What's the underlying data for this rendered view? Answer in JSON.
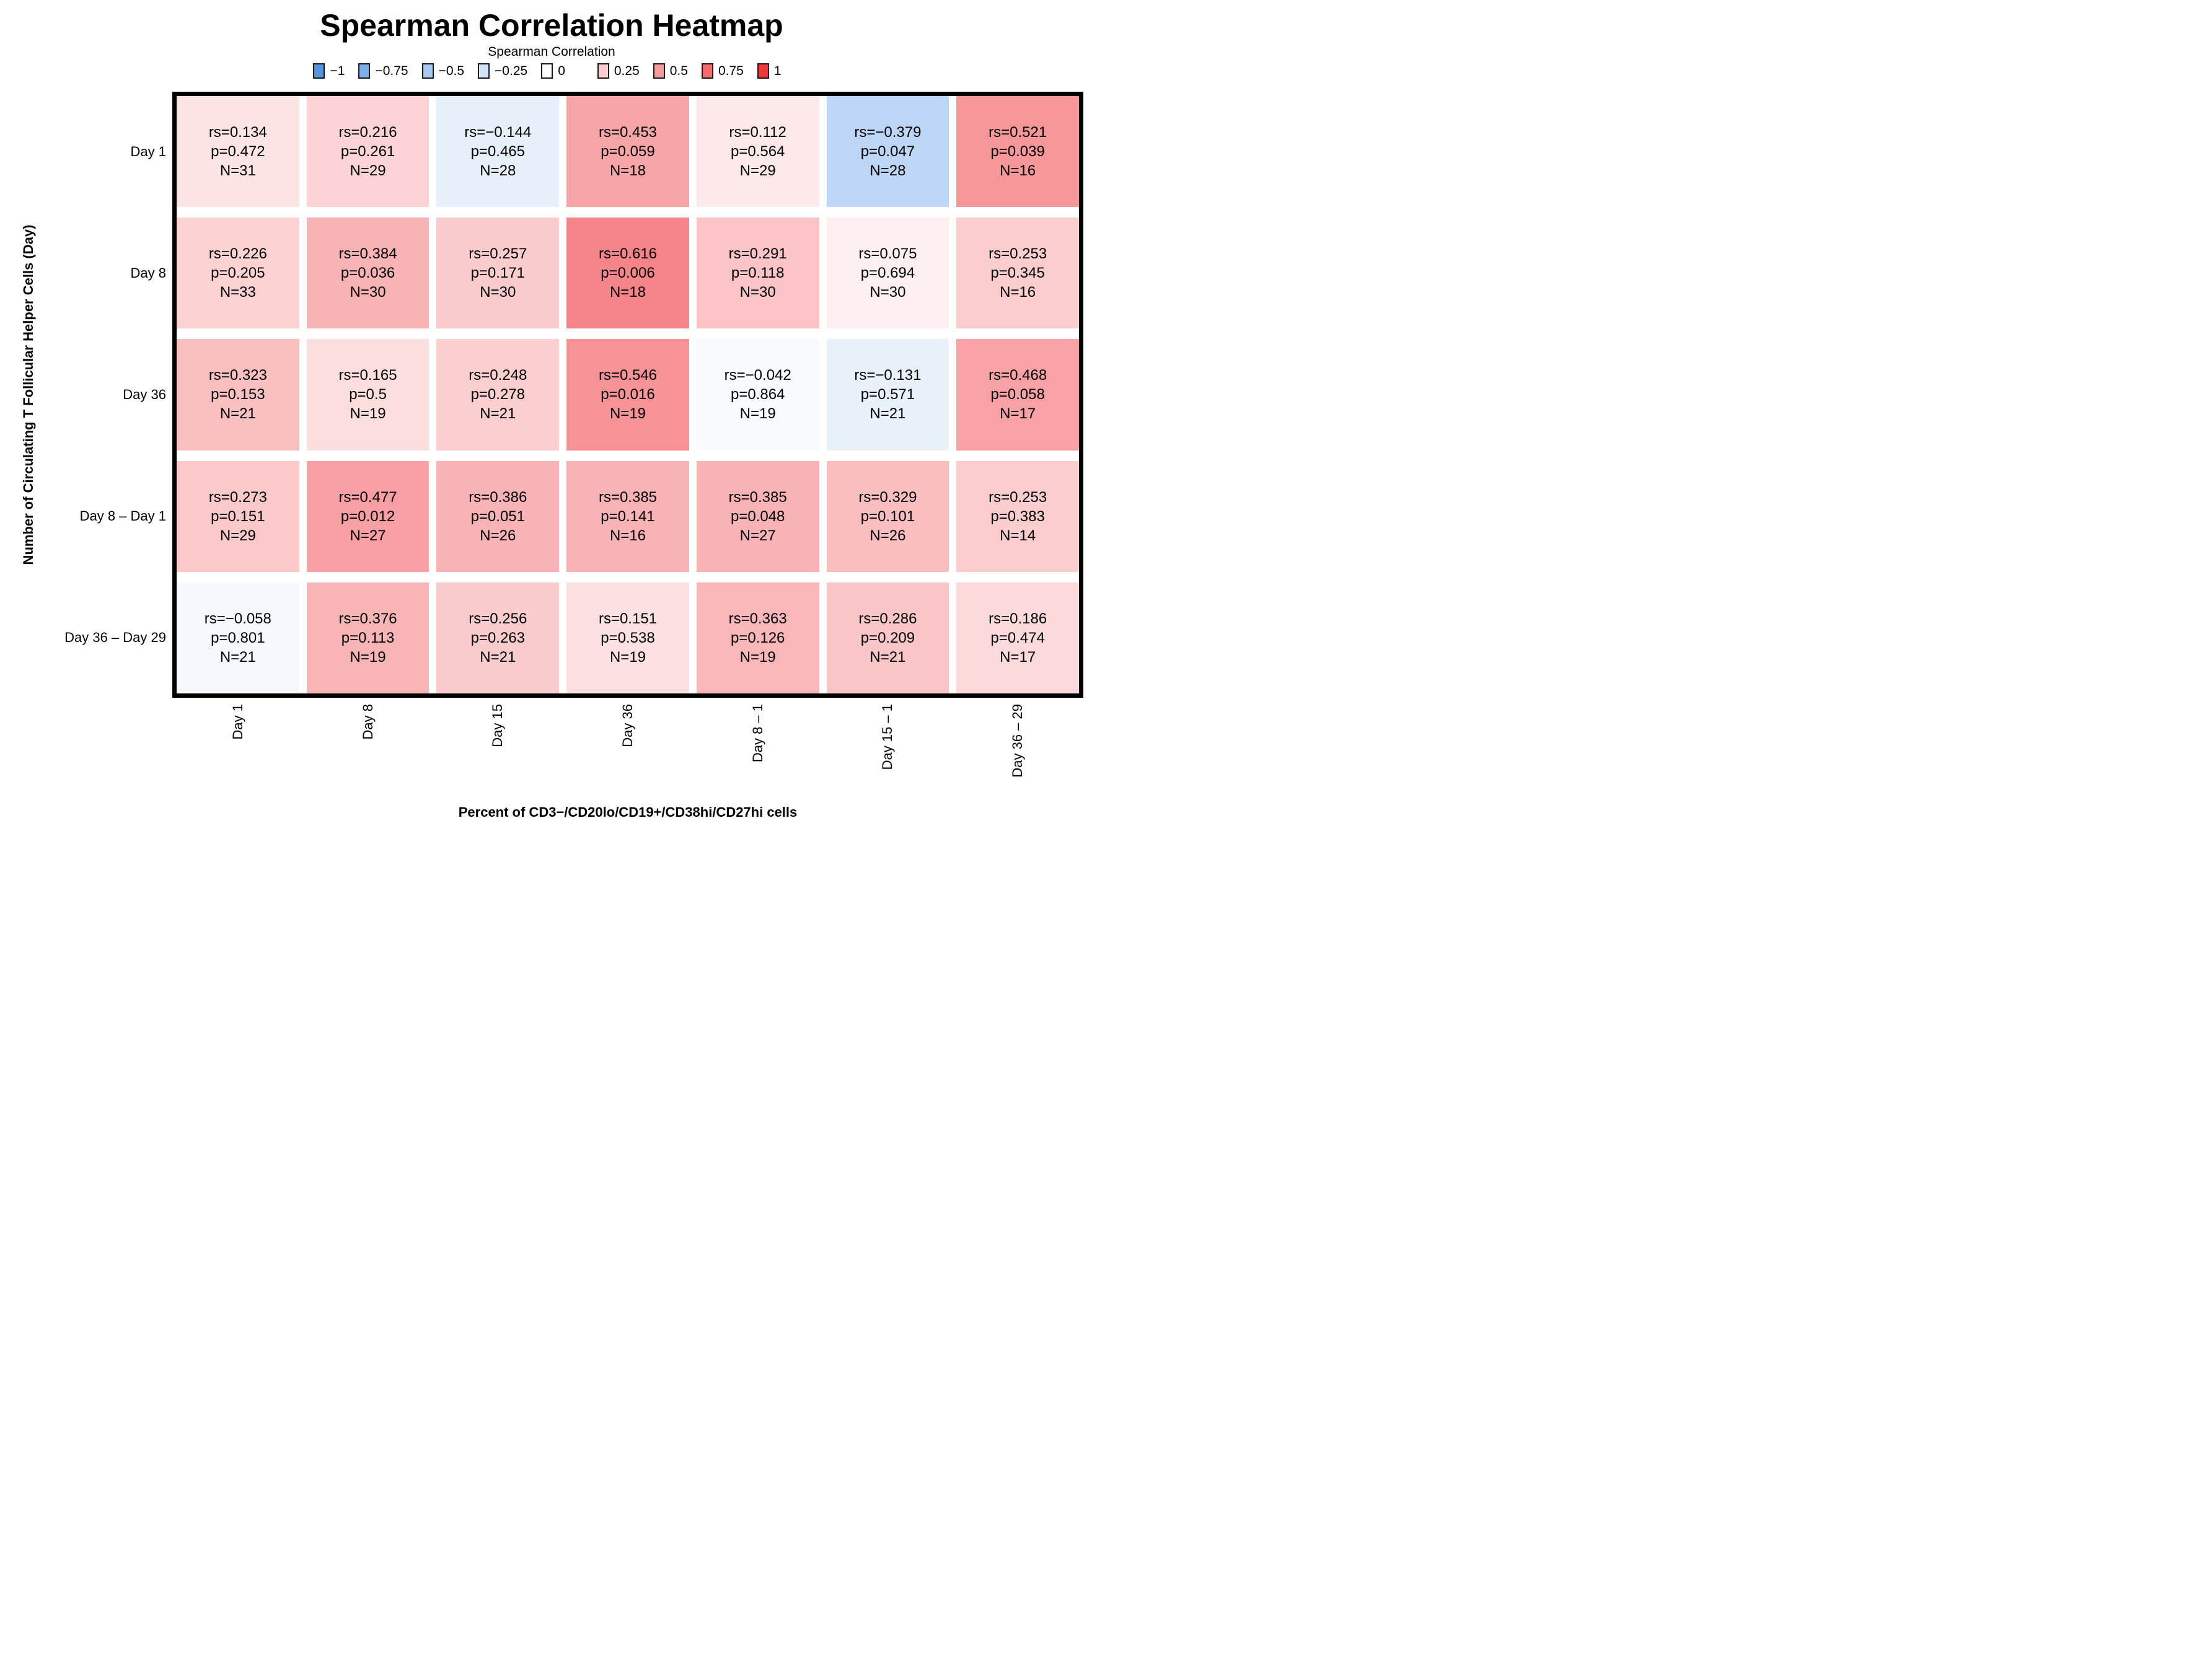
{
  "header": {
    "title": "Spearman Correlation Heatmap",
    "legend_title": "Spearman Correlation"
  },
  "legend": {
    "items": [
      {
        "label": "−1",
        "value": -1
      },
      {
        "label": "−0.75",
        "value": -0.75
      },
      {
        "label": "−0.5",
        "value": -0.5
      },
      {
        "label": "−0.25",
        "value": -0.25
      },
      {
        "label": "0",
        "value": 0
      },
      {
        "label": "0.25",
        "value": 0.25
      },
      {
        "label": "0.5",
        "value": 0.5
      },
      {
        "label": "0.75",
        "value": 0.75
      },
      {
        "label": "1",
        "value": 1
      }
    ]
  },
  "chart_data": {
    "type": "heatmap",
    "title": "Spearman Correlation Heatmap",
    "legend_title": "Spearman Correlation",
    "xlabel": "Percent of CD3−/CD20lo/CD19+/CD38hi/CD27hi cells",
    "ylabel": "Number of Circulating T Follicular Helper Cells (Day)",
    "rows": [
      "Day 1",
      "Day 8",
      "Day 36",
      "Day 8 – Day 1",
      "Day 36 – Day 29"
    ],
    "columns": [
      "Day 1",
      "Day 8",
      "Day 15",
      "Day 36",
      "Day 8 – 1",
      "Day 15 – 1",
      "Day 36 – 29"
    ],
    "value_range": [
      -1,
      1
    ],
    "colormap": {
      "negative_end": "#5494e4",
      "zero": "#ffffff",
      "positive_end": "#f0383e"
    },
    "cell_label_format": "rs={rs} / p={p} / N={N}",
    "cells": [
      [
        {
          "rs": 0.134,
          "p": 0.472,
          "N": 31
        },
        {
          "rs": 0.216,
          "p": 0.261,
          "N": 29
        },
        {
          "rs": -0.144,
          "p": 0.465,
          "N": 28
        },
        {
          "rs": 0.453,
          "p": 0.059,
          "N": 18
        },
        {
          "rs": 0.112,
          "p": 0.564,
          "N": 29
        },
        {
          "rs": -0.379,
          "p": 0.047,
          "N": 28
        },
        {
          "rs": 0.521,
          "p": 0.039,
          "N": 16
        }
      ],
      [
        {
          "rs": 0.226,
          "p": 0.205,
          "N": 33
        },
        {
          "rs": 0.384,
          "p": 0.036,
          "N": 30
        },
        {
          "rs": 0.257,
          "p": 0.171,
          "N": 30
        },
        {
          "rs": 0.616,
          "p": 0.006,
          "N": 18
        },
        {
          "rs": 0.291,
          "p": 0.118,
          "N": 30
        },
        {
          "rs": 0.075,
          "p": 0.694,
          "N": 30
        },
        {
          "rs": 0.253,
          "p": 0.345,
          "N": 16
        }
      ],
      [
        {
          "rs": 0.323,
          "p": 0.153,
          "N": 21
        },
        {
          "rs": 0.165,
          "p": 0.5,
          "N": 19
        },
        {
          "rs": 0.248,
          "p": 0.278,
          "N": 21
        },
        {
          "rs": 0.546,
          "p": 0.016,
          "N": 19
        },
        {
          "rs": -0.042,
          "p": 0.864,
          "N": 19
        },
        {
          "rs": -0.131,
          "p": 0.571,
          "N": 21
        },
        {
          "rs": 0.468,
          "p": 0.058,
          "N": 17
        }
      ],
      [
        {
          "rs": 0.273,
          "p": 0.151,
          "N": 29
        },
        {
          "rs": 0.477,
          "p": 0.012,
          "N": 27
        },
        {
          "rs": 0.386,
          "p": 0.051,
          "N": 26
        },
        {
          "rs": 0.385,
          "p": 0.141,
          "N": 16
        },
        {
          "rs": 0.385,
          "p": 0.048,
          "N": 27
        },
        {
          "rs": 0.329,
          "p": 0.101,
          "N": 26
        },
        {
          "rs": 0.253,
          "p": 0.383,
          "N": 14
        }
      ],
      [
        {
          "rs": -0.058,
          "p": 0.801,
          "N": 21
        },
        {
          "rs": 0.376,
          "p": 0.113,
          "N": 19
        },
        {
          "rs": 0.256,
          "p": 0.263,
          "N": 21
        },
        {
          "rs": 0.151,
          "p": 0.538,
          "N": 19
        },
        {
          "rs": 0.363,
          "p": 0.126,
          "N": 19
        },
        {
          "rs": 0.286,
          "p": 0.209,
          "N": 21
        },
        {
          "rs": 0.186,
          "p": 0.474,
          "N": 17
        }
      ]
    ]
  }
}
